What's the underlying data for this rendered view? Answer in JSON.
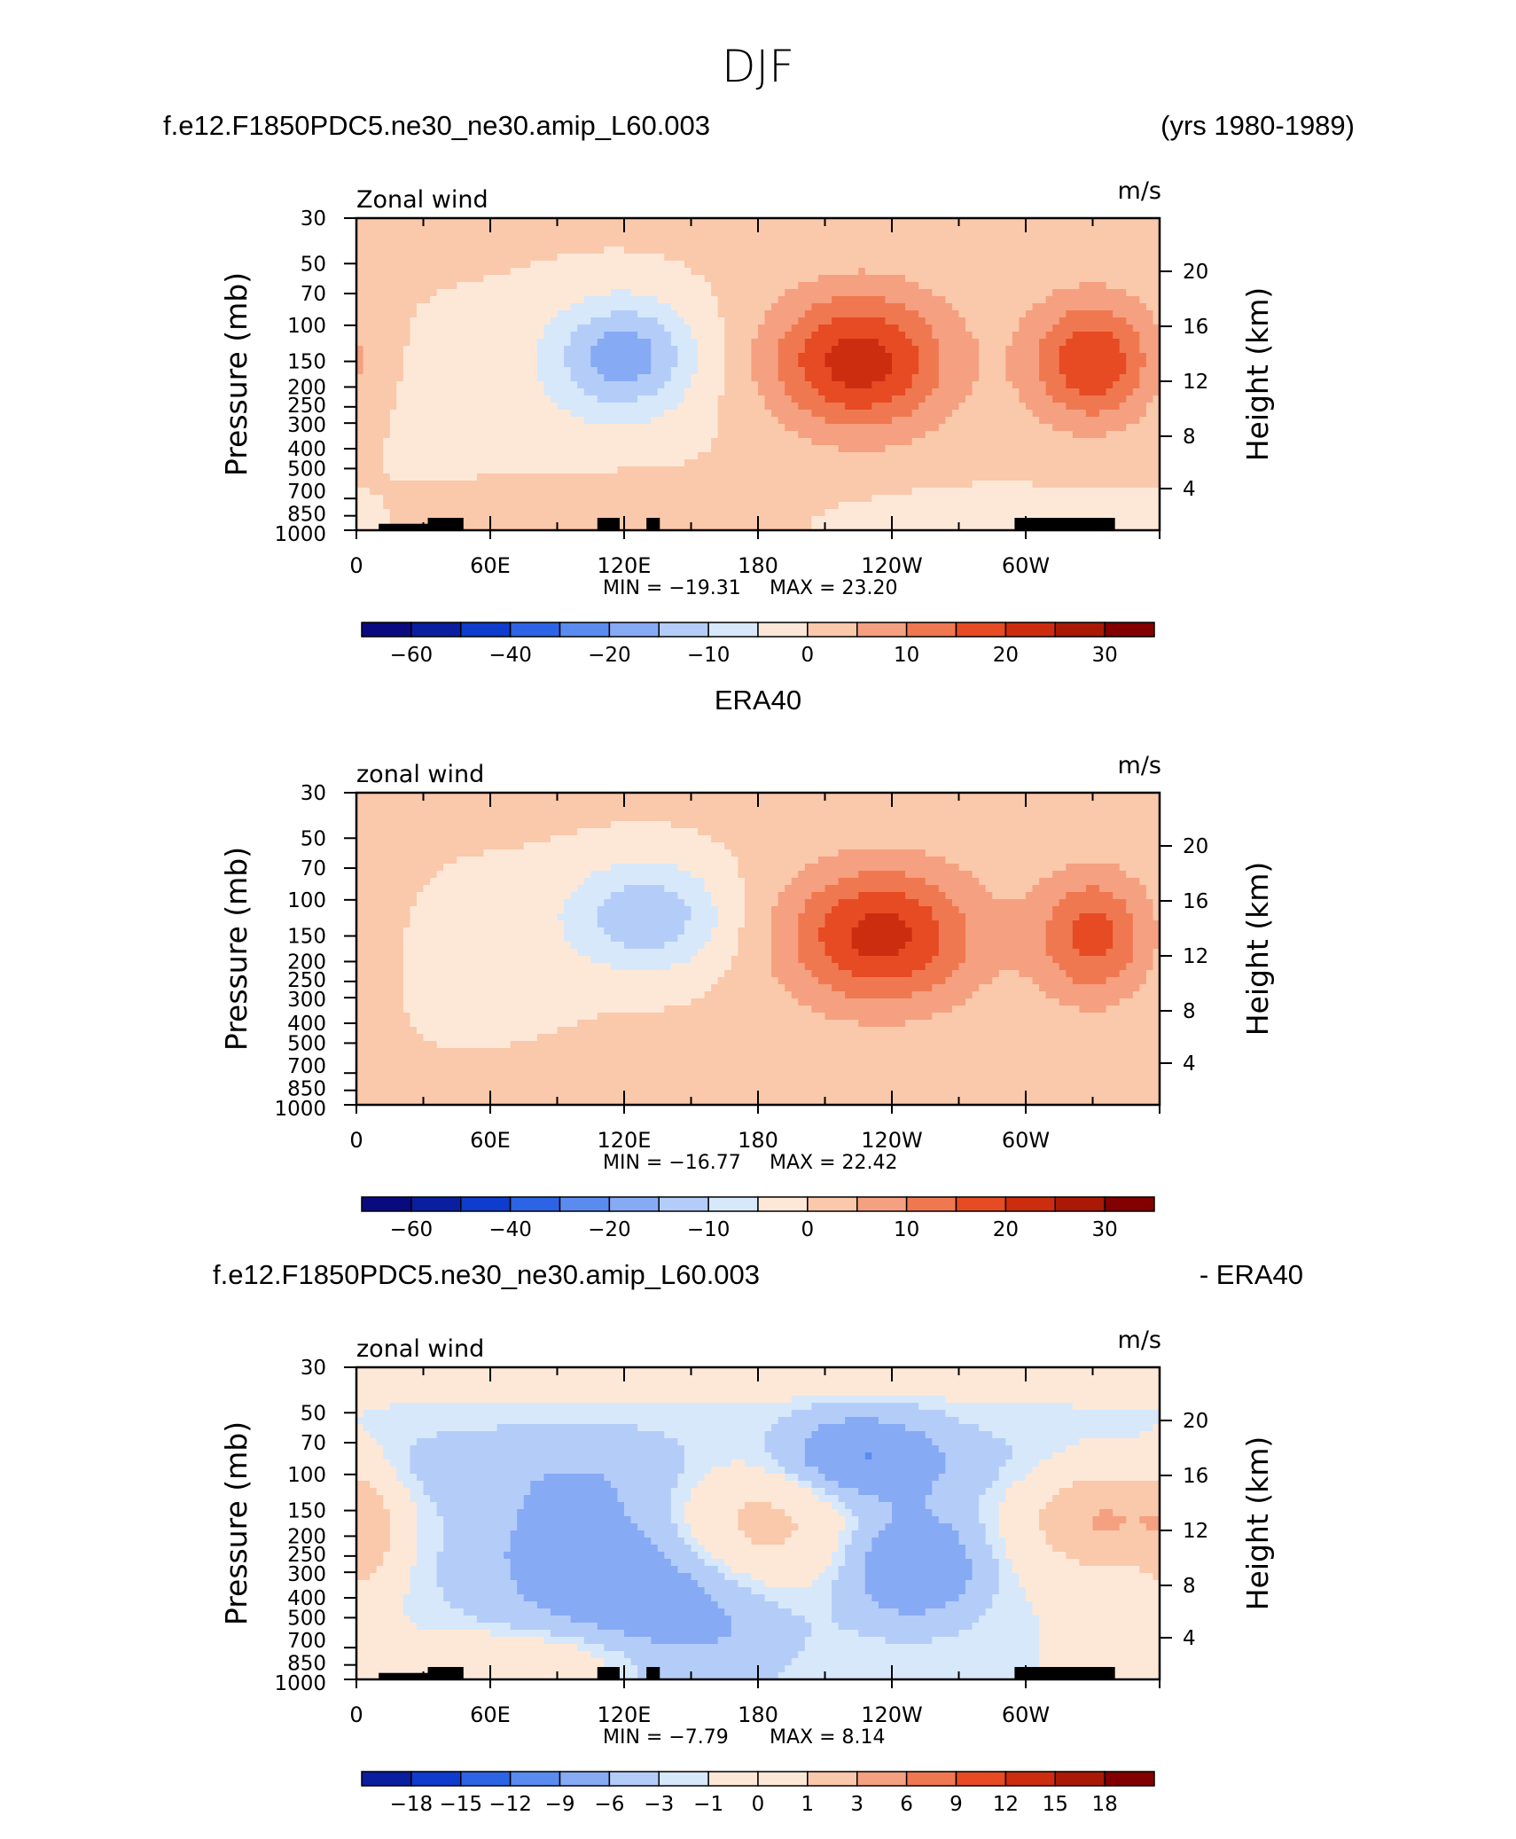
{
  "figure": {
    "title": "DJF"
  },
  "colormaps": {
    "full": [
      "#0a0a80",
      "#0a1ea0",
      "#0f3ccc",
      "#2d64e6",
      "#5a8cf0",
      "#87aaf5",
      "#b4cdf8",
      "#d7e8fa",
      "#fde8d8",
      "#fac8aa",
      "#f5a080",
      "#f07850",
      "#e64b23",
      "#cd2d0f",
      "#aa1905",
      "#820000"
    ],
    "diff_index": [
      1,
      2,
      3,
      4,
      5,
      6,
      7,
      8,
      8,
      9,
      10,
      11,
      12,
      13,
      14,
      15
    ]
  },
  "panels": [
    {
      "id": "model",
      "header_left": "f.e12.F1850PDC5.ne30_ne30.amip_L60.003",
      "header_right": "(yrs 1980-1989)",
      "header_center": "",
      "var_label": "Zonal wind",
      "units_label": "m/s",
      "min_label": "MIN = −19.31",
      "max_label": "MAX =   23.20",
      "cbar_labels": [
        "−60",
        "−40",
        "−20",
        "−10",
        "0",
        "10",
        "20",
        "30"
      ],
      "colormap": "full",
      "terrain": true
    },
    {
      "id": "obs",
      "header_left": "",
      "header_right": "",
      "header_center": "ERA40",
      "var_label": "zonal wind",
      "units_label": "m/s",
      "min_label": "MIN = −16.77",
      "max_label": "MAX =   22.42",
      "cbar_labels": [
        "−60",
        "−40",
        "−20",
        "−10",
        "0",
        "10",
        "20",
        "30"
      ],
      "colormap": "full",
      "terrain": false
    },
    {
      "id": "diff",
      "header_left": "f.e12.F1850PDC5.ne30_ne30.amip_L60.003",
      "header_right": "- ERA40",
      "header_center": "",
      "var_label": "zonal wind",
      "units_label": "m/s",
      "min_label": "MIN =   −7.79",
      "max_label": "MAX =    8.14",
      "cbar_labels": [
        "−18",
        "−15",
        "−12",
        "−9",
        "−6",
        "−3",
        "−1",
        "0",
        "1",
        "3",
        "6",
        "9",
        "12",
        "15",
        "18"
      ],
      "colormap": "diff",
      "terrain": true
    }
  ],
  "axes": {
    "x_ticks": [
      "0",
      "60E",
      "120E",
      "180",
      "120W",
      "60W"
    ],
    "y_label": "Pressure  (mb)",
    "y_ticks": [
      "30",
      "50",
      "70",
      "100",
      "150",
      "200",
      "250",
      "300",
      "400",
      "500",
      "700",
      "850",
      "1000"
    ],
    "y2_label": "Height  (km)",
    "y2_ticks": [
      "20",
      "16",
      "12",
      "8",
      "4"
    ]
  },
  "chart_data": [
    {
      "type": "heatmap",
      "title": "f.e12.F1850PDC5.ne30_ne30.amip_L60.003 (yrs 1980-1989)",
      "variable": "Zonal wind",
      "units": "m/s",
      "x_range_deg_east": [
        0,
        360
      ],
      "y_range_mb": [
        1000,
        30
      ],
      "levels": [
        -70,
        -60,
        -50,
        -40,
        -30,
        -20,
        -15,
        -10,
        -5,
        0,
        5,
        10,
        15,
        20,
        25,
        30,
        35
      ],
      "min": -19.31,
      "max": 23.2,
      "features": [
        {
          "kind": "max",
          "lon": 225,
          "p_mb": 150,
          "value": 23.2
        },
        {
          "kind": "max",
          "lon": 330,
          "p_mb": 150,
          "value": 20
        },
        {
          "kind": "min",
          "lon": 120,
          "p_mb": 130,
          "value": -19.31
        }
      ]
    },
    {
      "type": "heatmap",
      "title": "ERA40",
      "variable": "zonal wind",
      "units": "m/s",
      "x_range_deg_east": [
        0,
        360
      ],
      "y_range_mb": [
        1000,
        30
      ],
      "levels": [
        -70,
        -60,
        -50,
        -40,
        -30,
        -20,
        -15,
        -10,
        -5,
        0,
        5,
        10,
        15,
        20,
        25,
        30,
        35
      ],
      "min": -16.77,
      "max": 22.42,
      "features": [
        {
          "kind": "max",
          "lon": 235,
          "p_mb": 150,
          "value": 22.42
        },
        {
          "kind": "max",
          "lon": 330,
          "p_mb": 150,
          "value": 17
        },
        {
          "kind": "min",
          "lon": 130,
          "p_mb": 110,
          "value": -16.77
        }
      ]
    },
    {
      "type": "heatmap",
      "title": "f.e12.F1850PDC5.ne30_ne30.amip_L60.003 - ERA40",
      "variable": "zonal wind",
      "units": "m/s",
      "x_range_deg_east": [
        0,
        360
      ],
      "y_range_mb": [
        1000,
        30
      ],
      "levels": [
        -18,
        -15,
        -12,
        -9,
        -6,
        -3,
        -1,
        0,
        1,
        3,
        6,
        9,
        12,
        15,
        18
      ],
      "min": -7.79,
      "max": 8.14,
      "features": [
        {
          "kind": "max",
          "lon": 335,
          "p_mb": 160,
          "value": 8.14
        },
        {
          "kind": "max",
          "lon": 180,
          "p_mb": 170,
          "value": 6
        },
        {
          "kind": "min",
          "lon": 250,
          "p_mb": 280,
          "value": -7.79
        },
        {
          "kind": "min",
          "lon": 225,
          "p_mb": 80,
          "value": -7
        }
      ]
    }
  ]
}
